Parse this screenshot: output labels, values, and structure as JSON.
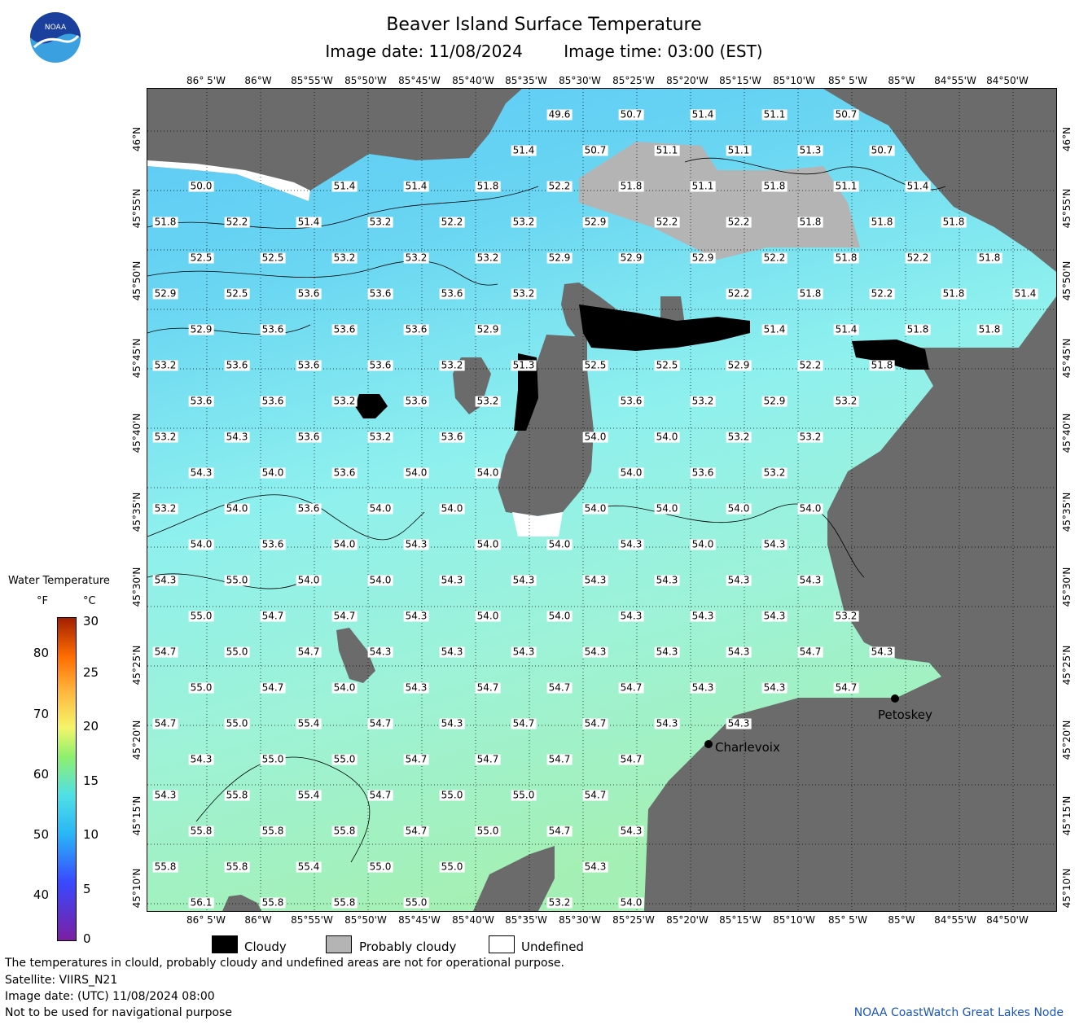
{
  "header": {
    "title": "Beaver Island Surface Temperature",
    "image_date": "Image date: 11/08/2024",
    "image_time": "Image time: 03:00 (EST)"
  },
  "logo": {
    "text": "NOAA",
    "colors": [
      "#1b3f9c",
      "#3aa0e0",
      "#ffffff"
    ]
  },
  "axes": {
    "lon_labels": [
      "86° 5'W",
      "86°W",
      "85°55'W",
      "85°50'W",
      "85°45'W",
      "85°40'W",
      "85°35'W",
      "85°30'W",
      "85°25'W",
      "85°20'W",
      "85°15'W",
      "85°10'W",
      "85° 5'W",
      "85°W",
      "84°55'W",
      "84°50'W"
    ],
    "lat_labels": [
      "46°N",
      "45°55'N",
      "45°50'N",
      "45°45'N",
      "45°40'N",
      "45°35'N",
      "45°30'N",
      "45°25'N",
      "45°20'N",
      "45°15'N",
      "45°10'N"
    ]
  },
  "temperature_labels": [
    "49.6",
    "50.7",
    "51.4",
    "51.1",
    "50.7",
    "51.4",
    "50.7",
    "51.1",
    "51.1",
    "51.3",
    "50.7",
    "50.0",
    "51.4",
    "51.4",
    "51.8",
    "52.2",
    "51.8",
    "51.1",
    "51.8",
    "51.1",
    "51.4",
    "51.8",
    "52.2",
    "51.4",
    "53.2",
    "52.2",
    "53.2",
    "52.9",
    "52.2",
    "52.2",
    "51.8",
    "51.8",
    "51.8",
    "52.5",
    "52.5",
    "53.2",
    "53.2",
    "53.2",
    "52.9",
    "52.9",
    "52.9",
    "52.2",
    "51.8",
    "52.2",
    "51.8",
    "52.9",
    "52.5",
    "53.6",
    "53.6",
    "53.6",
    "53.2",
    "52.2",
    "51.8",
    "52.2",
    "51.8",
    "51.4",
    "52.9",
    "53.6",
    "53.6",
    "53.6",
    "52.9",
    "51.4",
    "51.4",
    "51.8",
    "51.8",
    "53.2",
    "53.6",
    "53.6",
    "53.6",
    "53.2",
    "51.3",
    "52.5",
    "52.5",
    "52.9",
    "52.2",
    "51.8",
    "53.6",
    "53.6",
    "53.2",
    "53.6",
    "53.2",
    "53.6",
    "53.2",
    "52.9",
    "53.2",
    "53.2",
    "54.3",
    "53.6",
    "53.2",
    "53.6",
    "54.0",
    "54.0",
    "53.2",
    "53.2",
    "54.3",
    "54.0",
    "53.6",
    "54.0",
    "54.0",
    "54.0",
    "53.6",
    "53.2",
    "53.2",
    "54.0",
    "53.6",
    "54.0",
    "54.0",
    "54.0",
    "54.0",
    "54.0",
    "54.0",
    "54.0",
    "53.6",
    "54.0",
    "54.3",
    "54.0",
    "54.0",
    "54.3",
    "54.0",
    "54.3",
    "54.3",
    "55.0",
    "54.0",
    "54.0",
    "54.3",
    "54.3",
    "54.3",
    "54.3",
    "54.3",
    "54.3",
    "55.0",
    "54.7",
    "54.7",
    "54.3",
    "54.0",
    "54.0",
    "54.3",
    "54.3",
    "54.3",
    "53.2",
    "54.7",
    "55.0",
    "54.7",
    "54.3",
    "54.3",
    "54.3",
    "54.3",
    "54.3",
    "54.3",
    "54.7",
    "54.3",
    "55.0",
    "54.7",
    "54.0",
    "54.3",
    "54.7",
    "54.7",
    "54.7",
    "54.3",
    "54.3",
    "54.7",
    "54.7",
    "55.0",
    "55.4",
    "54.7",
    "54.3",
    "54.7",
    "54.7",
    "54.3",
    "54.3",
    "54.3",
    "55.0",
    "55.0",
    "54.7",
    "54.7",
    "54.7",
    "54.7",
    "54.3",
    "55.8",
    "55.4",
    "54.7",
    "55.0",
    "55.0",
    "54.7",
    "55.8",
    "55.8",
    "55.8",
    "54.7",
    "55.0",
    "54.7",
    "54.3",
    "55.8",
    "55.8",
    "55.4",
    "55.0",
    "55.0",
    "54.3",
    "56.1",
    "55.8",
    "55.8",
    "55.0",
    "53.2",
    "54.0"
  ],
  "cities": {
    "petoskey": "Petoskey",
    "charlevoix": "Charlevoix"
  },
  "legend": {
    "title": "Water Temperature",
    "unit_f": "°F",
    "unit_c": "°C",
    "fahrenheit_ticks": [
      "80",
      "70",
      "60",
      "50",
      "40"
    ],
    "celsius_ticks": [
      "30",
      "25",
      "20",
      "15",
      "10",
      "5",
      "0"
    ],
    "range_celsius": [
      0,
      30
    ]
  },
  "key": {
    "cloudy": "Cloudy",
    "probably_cloudy": "Probably cloudy",
    "undefined": "Undefined",
    "colors": {
      "cloudy": "#000000",
      "probably_cloudy": "#b4b4b4",
      "undefined": "#ffffff",
      "land": "#6b6b6b"
    }
  },
  "footer": {
    "disclaimer": "The temperatures in clould, probably cloudy and undefined areas are not for operational purpose.",
    "satellite": "Satellite: VIIRS_N21",
    "utc_date": "Image date: (UTC) 11/08/2024  08:00",
    "navigation": "Not to be used for navigational purpose",
    "credit": "NOAA CoastWatch Great Lakes Node"
  }
}
